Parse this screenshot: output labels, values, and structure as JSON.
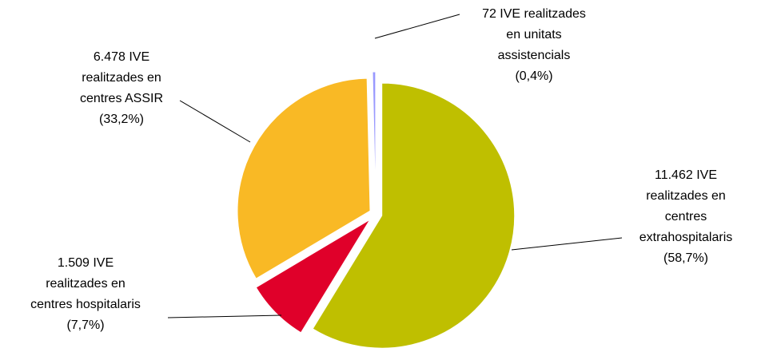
{
  "chart_data": {
    "type": "pie",
    "values": [
      11462,
      1509,
      6478,
      72
    ],
    "value_labels": [
      "11.462 IVE",
      "1.509 IVE",
      "6.478 IVE",
      "72 IVE realitzades"
    ],
    "categories": [
      [
        "realitzades en",
        "centres",
        "extrahospitalaris"
      ],
      [
        "realitzades en",
        "centres hospitalaris"
      ],
      [
        "realitzades en",
        "centres ASSIR"
      ],
      [
        "en unitats",
        "assistencials"
      ]
    ],
    "percents": [
      58.7,
      7.7,
      33.2,
      0.4
    ],
    "percent_labels": [
      "(58,7%)",
      "(7,7%)",
      "(33,2%)",
      "(0,4%)"
    ],
    "colors": [
      "#bfbf00",
      "#e0002a",
      "#f9b925",
      "#9999ff"
    ]
  }
}
